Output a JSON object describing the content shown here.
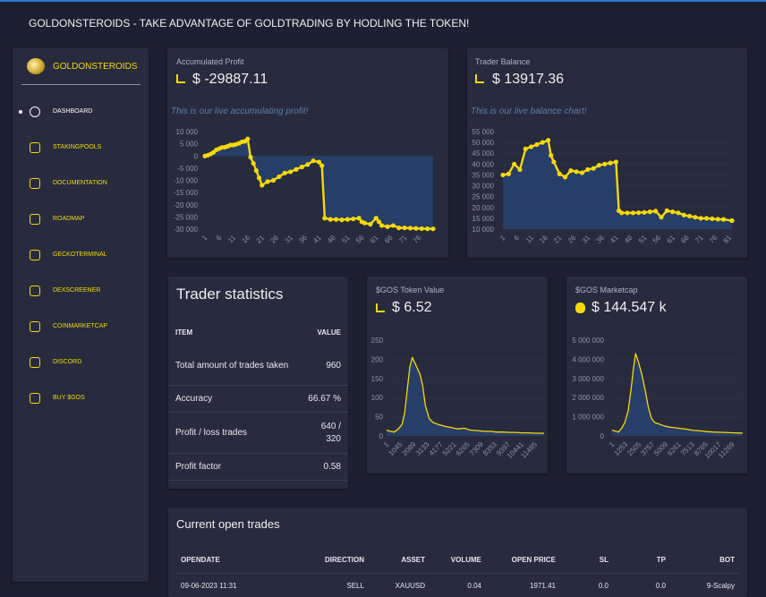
{
  "header": {
    "title": "GOLDONSTEROIDS - TAKE ADVANTAGE OF GOLDTRADING BY HODLING THE TOKEN!"
  },
  "sidebar": {
    "brand": "GOLDONSTEROIDS",
    "items": [
      "DASHBOARD",
      "STAKINGPOOLS",
      "DOCUMENTATION",
      "ROADMAP",
      "GECKOTERMINAL",
      "DEXSCREENER",
      "COINMARKETCAP",
      "DISCORD",
      "BUY $GOS"
    ]
  },
  "chart_data": [
    {
      "type": "line",
      "title": "Accumulated Profit",
      "headline": "$ -29887.11",
      "subtitle": "This is our live accumulating profit!",
      "color": "#f5d90a",
      "markers": true,
      "grid": true,
      "x": [
        1,
        2,
        3,
        4,
        5,
        6,
        7,
        8,
        9,
        10,
        11,
        12,
        13,
        14,
        15,
        16,
        17,
        18,
        19,
        20,
        21,
        23,
        25,
        27,
        29,
        31,
        33,
        35,
        37,
        39,
        41,
        42,
        43,
        45,
        47,
        49,
        51,
        53,
        55,
        56,
        57,
        59,
        61,
        62,
        63,
        65,
        67,
        69,
        71,
        73,
        75,
        77,
        79,
        81
      ],
      "values": [
        0,
        300,
        800,
        1500,
        2500,
        3000,
        3500,
        3600,
        4000,
        4500,
        4500,
        4800,
        5200,
        5800,
        6000,
        7000,
        -500,
        -3000,
        -6000,
        -9000,
        -12000,
        -10500,
        -10000,
        -8500,
        -7000,
        -6500,
        -5500,
        -4500,
        -3500,
        -2000,
        -2500,
        -4000,
        -25500,
        -26000,
        -26000,
        -26200,
        -26000,
        -25800,
        -25500,
        -27000,
        -27500,
        -28000,
        -25500,
        -27000,
        -28500,
        -29000,
        -28500,
        -29500,
        -29500,
        -29600,
        -29700,
        -29800,
        -29850,
        -29887.11
      ],
      "xlim": [
        1,
        81
      ],
      "xticks": [
        1,
        6,
        11,
        16,
        21,
        26,
        31,
        36,
        41,
        46,
        51,
        56,
        61,
        66,
        71,
        76
      ],
      "ylim": [
        -30000,
        10000
      ],
      "yticks": [
        {
          "value": 10000,
          "label": "10 000"
        },
        {
          "value": 5000,
          "label": "5 000"
        },
        0,
        {
          "value": -5000,
          "label": "-5 000"
        },
        {
          "value": -10000,
          "label": "-10 000"
        },
        {
          "value": -15000,
          "label": "-15 000"
        },
        {
          "value": -20000,
          "label": "-20 000"
        },
        {
          "value": -25000,
          "label": "-25 000"
        },
        {
          "value": -30000,
          "label": "-30 000"
        }
      ]
    },
    {
      "type": "line",
      "title": "Trader Balance",
      "headline": "$ 13917.36",
      "subtitle": "This is our live balance chart!",
      "color": "#f5d90a",
      "markers": true,
      "grid": true,
      "x": [
        1,
        3,
        5,
        7,
        9,
        11,
        13,
        15,
        17,
        18,
        19,
        21,
        23,
        25,
        27,
        29,
        31,
        33,
        35,
        37,
        39,
        41,
        42,
        43,
        45,
        47,
        49,
        51,
        53,
        55,
        57,
        59,
        61,
        63,
        65,
        67,
        69,
        71,
        73,
        75,
        77,
        79,
        82
      ],
      "values": [
        35000,
        35500,
        40000,
        37500,
        47000,
        48000,
        49000,
        50000,
        51000,
        44000,
        41000,
        35500,
        34000,
        37000,
        36500,
        36000,
        37500,
        38000,
        39500,
        40000,
        40500,
        41000,
        18500,
        17500,
        17500,
        17500,
        17600,
        17700,
        18000,
        18300,
        15500,
        18500,
        18000,
        17500,
        16500,
        16000,
        15500,
        15000,
        15000,
        14800,
        14600,
        14500,
        13917.36
      ],
      "xlim": [
        1,
        82
      ],
      "xticks": [
        1,
        6,
        11,
        16,
        21,
        26,
        31,
        36,
        41,
        46,
        51,
        56,
        61,
        66,
        71,
        76,
        81
      ],
      "ylim": [
        10000,
        55000
      ],
      "yticks": [
        {
          "value": 55000,
          "label": "55 000"
        },
        {
          "value": 50000,
          "label": "50 000"
        },
        {
          "value": 45000,
          "label": "45 000"
        },
        {
          "value": 40000,
          "label": "40 000"
        },
        {
          "value": 35000,
          "label": "35 000"
        },
        {
          "value": 30000,
          "label": "30 000"
        },
        {
          "value": 25000,
          "label": "25 000"
        },
        {
          "value": 20000,
          "label": "20 000"
        },
        {
          "value": 15000,
          "label": "15 000"
        },
        {
          "value": 10000,
          "label": "10 000"
        }
      ]
    },
    {
      "type": "line",
      "title": "$GOS Token Value",
      "headline": "$ 6.52",
      "color": "#f5d90a",
      "markers": false,
      "grid": true,
      "x": [
        1,
        300,
        600,
        900,
        1200,
        1400,
        1600,
        1800,
        2000,
        2200,
        2400,
        2600,
        2800,
        3000,
        3300,
        3600,
        4000,
        4500,
        5000,
        5500,
        6000,
        6500,
        7000,
        7500,
        8000,
        8500,
        9000,
        9500,
        10000,
        10500,
        11000,
        11500,
        12000,
        12200
      ],
      "values": [
        15,
        12,
        10,
        18,
        30,
        60,
        120,
        180,
        205,
        190,
        175,
        160,
        130,
        80,
        45,
        35,
        30,
        25,
        22,
        18,
        20,
        15,
        14,
        12,
        12,
        10,
        10,
        9,
        9,
        8,
        8,
        7,
        7,
        6.52
      ],
      "xlim": [
        1,
        12200
      ],
      "xticks": [
        1,
        1045,
        2089,
        3133,
        4177,
        5221,
        6265,
        7309,
        8353,
        9397,
        10441,
        11485
      ],
      "ylim": [
        0,
        250
      ],
      "yticks": [
        250,
        200,
        150,
        100,
        50,
        0
      ]
    },
    {
      "type": "line",
      "title": "$GOS Marketcap",
      "headline": "$ 144.547 k",
      "color": "#f5d90a",
      "markers": false,
      "grid": true,
      "x": [
        1,
        300,
        600,
        900,
        1200,
        1500,
        1800,
        2000,
        2200,
        2500,
        2800,
        3100,
        3400,
        3700,
        4000,
        4500,
        5000,
        5500,
        6000,
        6500,
        7000,
        7500,
        8000,
        8500,
        9000,
        9500,
        10000,
        10500,
        11000,
        11500,
        12000,
        12260
      ],
      "values": [
        300000,
        250000,
        200000,
        400000,
        700000,
        1300000,
        2500000,
        3500000,
        4300000,
        3800000,
        3200000,
        2400000,
        1500000,
        900000,
        700000,
        600000,
        500000,
        450000,
        420000,
        380000,
        350000,
        300000,
        280000,
        250000,
        220000,
        200000,
        190000,
        180000,
        170000,
        160000,
        150000,
        144547
      ],
      "xlim": [
        1,
        12260
      ],
      "xticks": [
        1,
        1253,
        2505,
        3757,
        5009,
        6261,
        7513,
        8765,
        10017,
        11269
      ],
      "ylim": [
        0,
        5000000
      ],
      "yticks": [
        {
          "value": 5000000,
          "label": "5 000 000"
        },
        {
          "value": 4000000,
          "label": "4 000 000"
        },
        {
          "value": 3000000,
          "label": "3 000 000"
        },
        {
          "value": 2000000,
          "label": "2 000 000"
        },
        {
          "value": 1000000,
          "label": "1 000 000"
        },
        0
      ]
    }
  ],
  "stats": {
    "title": "Trader statistics",
    "columns": [
      "ITEM",
      "VALUE"
    ],
    "rows": [
      [
        "Total amount of trades taken",
        "960"
      ],
      [
        "Accuracy",
        "66.67 %"
      ],
      [
        "Profit / loss trades",
        "640 / 320"
      ],
      [
        "Profit factor",
        "0.58"
      ]
    ]
  },
  "trades": {
    "title": "Current open trades",
    "columns": [
      "OPENDATE",
      "DIRECTION",
      "ASSET",
      "VOLUME",
      "OPEN PRICE",
      "SL",
      "TP",
      "BOT"
    ],
    "rows": [
      [
        "09-06-2023 11:31",
        "SELL",
        "XAUUSD",
        "0.04",
        "1971.41",
        "0.0",
        "0.0",
        "9-Scalpy"
      ]
    ]
  }
}
